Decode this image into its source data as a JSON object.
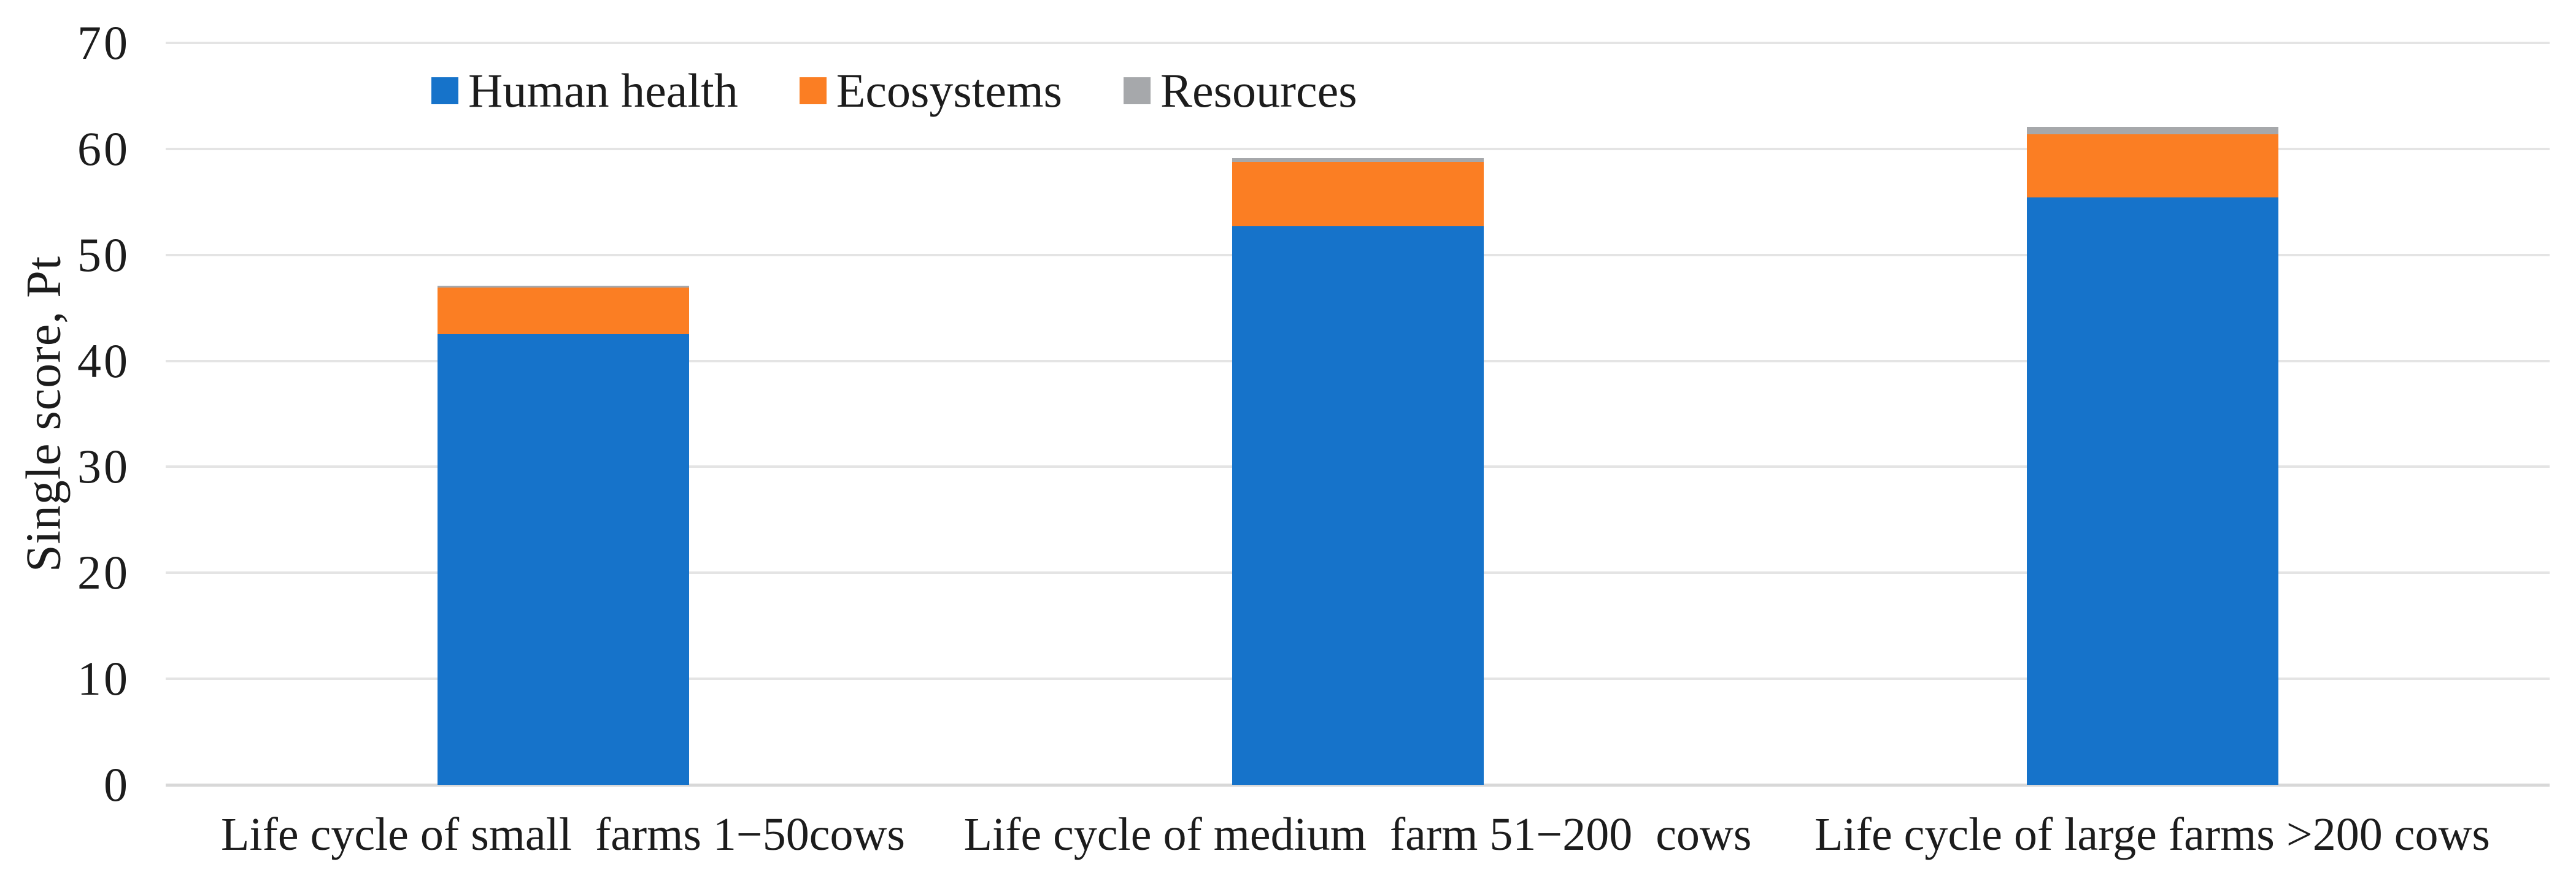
{
  "chart_data": {
    "type": "bar",
    "stacked": true,
    "title": "",
    "ylabel": "Single score, Pt",
    "xlabel": "",
    "ylim": [
      0,
      70
    ],
    "yticks": [
      0,
      10,
      20,
      30,
      40,
      50,
      60,
      70
    ],
    "grid": true,
    "legend_position": "top-inside",
    "categories": [
      "Life cycle of small  farms 1−50cows",
      "Life cycle of medium  farm 51−200  cows",
      "Life cycle of large farms >200 cows"
    ],
    "series": [
      {
        "name": "Human health",
        "color": "#1673CA",
        "values": [
          42.5,
          52.7,
          55.4
        ]
      },
      {
        "name": "Ecosystems",
        "color": "#FB7E23",
        "values": [
          4.4,
          6.1,
          6.0
        ]
      },
      {
        "name": "Resources",
        "color": "#A6A8AB",
        "values": [
          0.2,
          0.3,
          0.7
        ]
      }
    ],
    "stack_totals": [
      47.1,
      59.1,
      62.1
    ]
  },
  "colors": {
    "grid": "#E4E4E4",
    "axis_line": "#D8D8D8",
    "text": "#1C1C1C",
    "background": "#FFFFFF"
  }
}
